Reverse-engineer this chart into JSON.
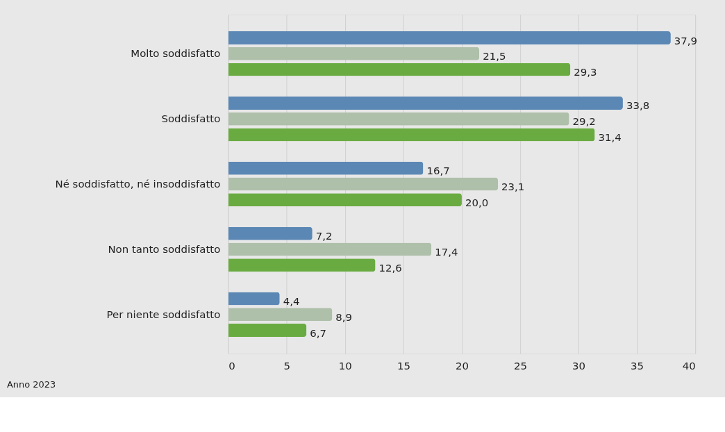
{
  "chart_data": {
    "type": "bar",
    "orientation": "horizontal",
    "categories": [
      "Molto soddisfatto",
      "Soddisfatto",
      "Né soddisfatto, né insoddisfatto",
      "Non tanto soddisfatto",
      "Per niente soddisfatto"
    ],
    "series": [
      {
        "color": "#5b87b5",
        "values": [
          37.9,
          33.8,
          16.7,
          7.2,
          4.4
        ],
        "value_labels": [
          "37,9",
          "33,8",
          "16,7",
          "7,2",
          "4,4"
        ]
      },
      {
        "color": "#aebfaa",
        "values": [
          21.5,
          29.2,
          23.1,
          17.4,
          8.9
        ],
        "value_labels": [
          "21,5",
          "29,2",
          "23,1",
          "17,4",
          "8,9"
        ]
      },
      {
        "color": "#6aab41",
        "values": [
          29.3,
          31.4,
          20.0,
          12.6,
          6.7
        ],
        "value_labels": [
          "29,3",
          "31,4",
          "20,0",
          "12,6",
          "6,7"
        ]
      }
    ],
    "xlim": [
      0,
      40
    ],
    "xticks": [
      0,
      5,
      10,
      15,
      20,
      25,
      30,
      35,
      40
    ],
    "grid": "x",
    "annotations": [
      "Anno 2023"
    ]
  }
}
